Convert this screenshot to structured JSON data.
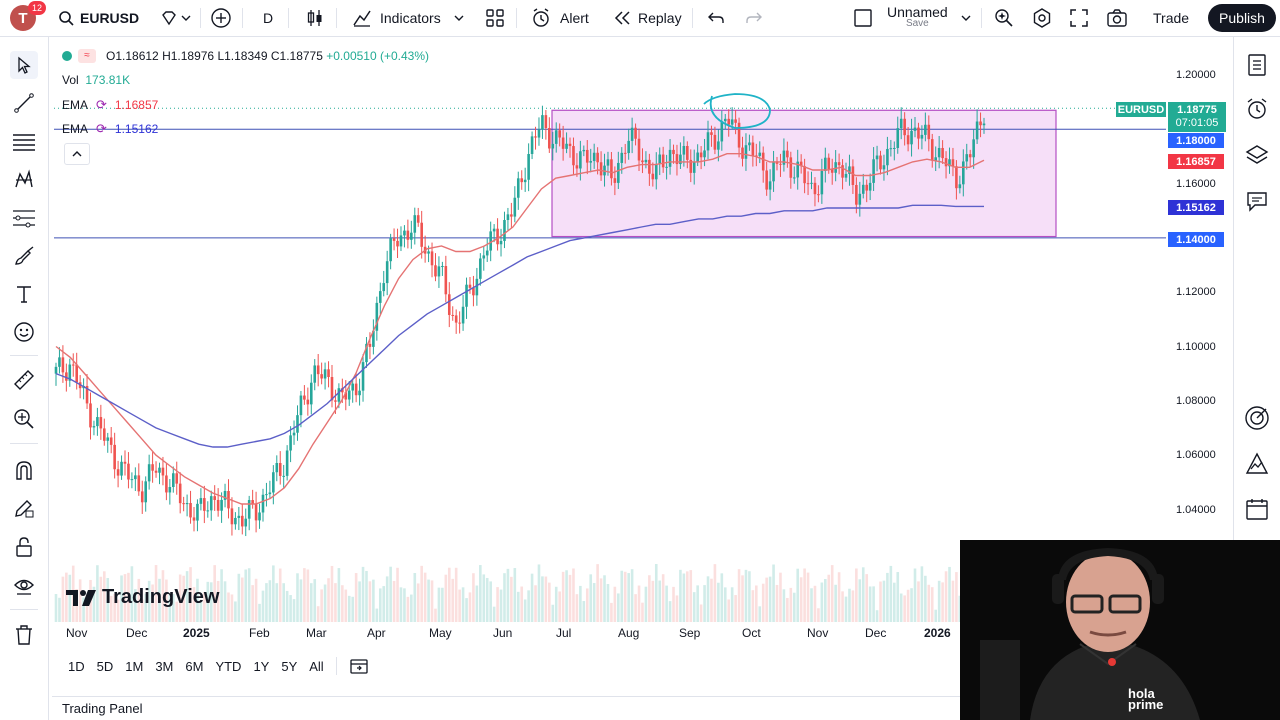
{
  "topbar": {
    "avatar_letter": "T",
    "notification_count": "12",
    "symbol": "EURUSD",
    "interval": "D",
    "indicators_label": "Indicators",
    "alert_label": "Alert",
    "replay_label": "Replay",
    "layout_name": "Unnamed",
    "layout_save": "Save",
    "trade_label": "Trade",
    "publish_label": "Publish"
  },
  "legend": {
    "open": "O1.18612",
    "high": "H1.18976",
    "low": "L1.18349",
    "close": "C1.18775",
    "change": "+0.00510 (+0.43%)",
    "vol_label": "Vol",
    "vol_value": "173.81K",
    "ema1_label": "EMA",
    "ema1_value": "1.16857",
    "ema2_label": "EMA",
    "ema2_value": "1.15162"
  },
  "price_axis": [
    "1.20000",
    "1.18000",
    "1.16000",
    "1.14000",
    "1.12000",
    "1.10000",
    "1.08000",
    "1.06000",
    "1.04000"
  ],
  "price_tags": {
    "symbol_tag": "EURUSD",
    "last_price": "1.18775",
    "countdown": "07:01:05",
    "line_upper": "1.18000",
    "ema1": "1.16857",
    "ema2": "1.15162",
    "line_lower": "1.14000"
  },
  "time_axis": [
    "Nov",
    "Dec",
    "2025",
    "Feb",
    "Mar",
    "Apr",
    "May",
    "Jun",
    "Jul",
    "Aug",
    "Sep",
    "Oct",
    "Nov",
    "Dec",
    "2026"
  ],
  "watermark": "TradingView",
  "range_buttons": [
    "1D",
    "5D",
    "1M",
    "3M",
    "6M",
    "YTD",
    "1Y",
    "5Y",
    "All"
  ],
  "trading_panel_label": "Trading Panel",
  "webcam_logo": "hola prime",
  "colors": {
    "up": "#26a69a",
    "down": "#ef5350",
    "ema_fast": "#e57373",
    "ema_slow": "#5c5fc8",
    "box_fill": "#f3d4f5",
    "box_border": "#b54fc4",
    "hline": "#3f51b5",
    "publish_bg": "#131722",
    "last_price": "#22ab94",
    "ema1_tag": "#f23645",
    "ema2_tag": "#2e32d6",
    "hline_tag": "#2962ff"
  },
  "chart_data": {
    "type": "candlestick",
    "symbol": "EURUSD",
    "ylim": [
      1.03,
      1.205
    ],
    "x_months": [
      "Nov",
      "Dec",
      "2025",
      "Feb",
      "Mar",
      "Apr",
      "May",
      "Jun",
      "Jul",
      "Aug",
      "Sep",
      "Oct",
      "Nov",
      "Dec",
      "2026"
    ],
    "close_path": [
      1.09,
      1.094,
      1.08,
      1.07,
      1.06,
      1.052,
      1.048,
      1.055,
      1.05,
      1.042,
      1.038,
      1.045,
      1.04,
      1.036,
      1.04,
      1.048,
      1.058,
      1.075,
      1.09,
      1.088,
      1.08,
      1.085,
      1.1,
      1.13,
      1.14,
      1.145,
      1.135,
      1.125,
      1.108,
      1.12,
      1.135,
      1.142,
      1.15,
      1.17,
      1.182,
      1.176,
      1.172,
      1.168,
      1.17,
      1.16,
      1.178,
      1.17,
      1.163,
      1.172,
      1.168,
      1.17,
      1.176,
      1.184,
      1.175,
      1.17,
      1.162,
      1.17,
      1.164,
      1.158,
      1.165,
      1.168,
      1.155,
      1.162,
      1.17,
      1.178,
      1.18,
      1.176,
      1.17,
      1.162,
      1.17,
      1.188
    ],
    "ema_fast_path": [
      1.1,
      1.096,
      1.09,
      1.084,
      1.078,
      1.072,
      1.066,
      1.06,
      1.056,
      1.052,
      1.049,
      1.046,
      1.044,
      1.042,
      1.042,
      1.044,
      1.048,
      1.055,
      1.064,
      1.072,
      1.08,
      1.09,
      1.103,
      1.115,
      1.125,
      1.132,
      1.136,
      1.137,
      1.135,
      1.135,
      1.137,
      1.14,
      1.144,
      1.151,
      1.158,
      1.162,
      1.163,
      1.164,
      1.165,
      1.164,
      1.166,
      1.167,
      1.167,
      1.168,
      1.168,
      1.168,
      1.169,
      1.171,
      1.171,
      1.17,
      1.168,
      1.168,
      1.167,
      1.165,
      1.165,
      1.166,
      1.163,
      1.163,
      1.164,
      1.166,
      1.168,
      1.169,
      1.168,
      1.166,
      1.166,
      1.1686
    ],
    "ema_slow_path": [
      1.09,
      1.088,
      1.085,
      1.082,
      1.079,
      1.076,
      1.073,
      1.07,
      1.068,
      1.066,
      1.064,
      1.063,
      1.063,
      1.064,
      1.065,
      1.066,
      1.068,
      1.071,
      1.075,
      1.079,
      1.084,
      1.089,
      1.094,
      1.099,
      1.104,
      1.108,
      1.112,
      1.115,
      1.118,
      1.121,
      1.124,
      1.127,
      1.13,
      1.133,
      1.135,
      1.137,
      1.139,
      1.14,
      1.141,
      1.142,
      1.143,
      1.144,
      1.145,
      1.145,
      1.146,
      1.147,
      1.147,
      1.148,
      1.148,
      1.149,
      1.149,
      1.15,
      1.15,
      1.15,
      1.151,
      1.151,
      1.151,
      1.151,
      1.151,
      1.151,
      1.152,
      1.152,
      1.152,
      1.1516,
      1.1516,
      1.1516
    ],
    "box": {
      "from_month": "Jul",
      "to_month": "2026",
      "top": 1.187,
      "bottom": 1.1405
    },
    "horizontal_lines": [
      1.18,
      1.14
    ]
  }
}
